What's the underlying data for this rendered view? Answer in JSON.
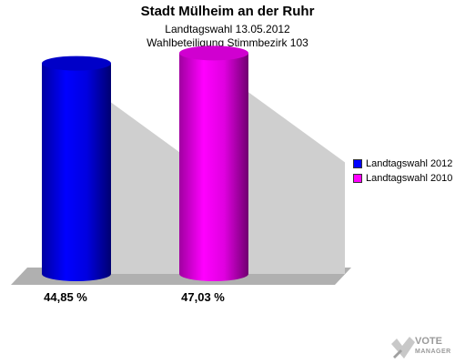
{
  "header": {
    "title": "Stadt Mülheim an der Ruhr",
    "subtitle1": "Landtagswahl 13.05.2012",
    "subtitle2": "Wahlbeteiligung Stimmbezirk 103"
  },
  "chart_data": {
    "type": "bar",
    "title": "Stadt Mülheim an der Ruhr",
    "subtitle": [
      "Landtagswahl 13.05.2012",
      "Wahlbeteiligung Stimmbezirk 103"
    ],
    "xlabel": "",
    "ylabel": "",
    "ylim": [
      0,
      50
    ],
    "grid": false,
    "legend_position": "right",
    "series": [
      {
        "name": "Landtagswahl 2012",
        "value": 44.85,
        "label": "44,85 %",
        "color": "#0000ff"
      },
      {
        "name": "Landtagswahl 2010",
        "value": 47.03,
        "label": "47,03 %",
        "color": "#ff00ff"
      }
    ]
  },
  "legend": {
    "items": [
      {
        "label": "Landtagswahl 2012",
        "color": "#0000ff"
      },
      {
        "label": "Landtagswahl 2010",
        "color": "#ff00ff"
      }
    ]
  },
  "logo": {
    "line1": "VOTE",
    "line2": "MANAGER",
    "icon": "checkmark-x-icon"
  }
}
